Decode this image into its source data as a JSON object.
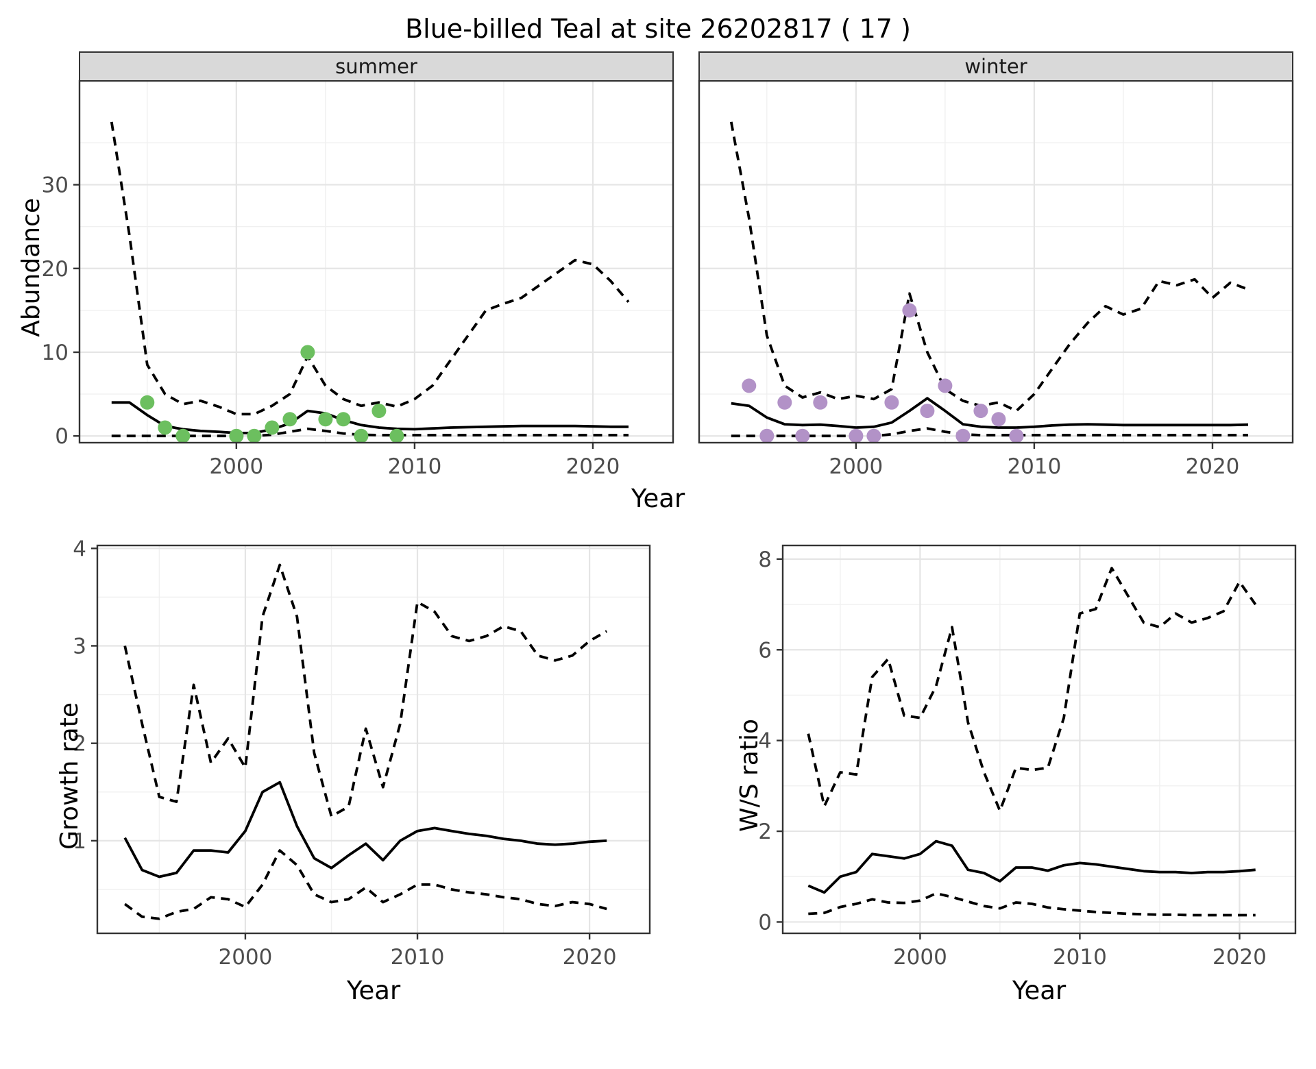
{
  "title": "Blue-billed Teal at site 26202817 ( 17 )",
  "colors": {
    "accent_summer": "#6cbf5f",
    "accent_winter": "#b292c7",
    "strip_bg": "#d9d9d9",
    "strip_text": "#1a1a1a",
    "grid_major": "#e5e5e5",
    "grid_minor": "#f0f0f0",
    "line": "#000000",
    "tick_label": "#4d4d4d",
    "border": "#333333"
  },
  "chart_data": [
    {
      "id": "abundance_summer",
      "type": "line",
      "facet": "summer",
      "ylabel": "Abundance",
      "xlabel": "Year",
      "xlim": [
        1991.2,
        2024.5
      ],
      "ylim": [
        -0.8,
        42.4
      ],
      "xticks": [
        2000,
        2010,
        2020
      ],
      "yticks": [
        0,
        10,
        20,
        30
      ],
      "xminor": [
        1995,
        2005,
        2015
      ],
      "yminor": [
        5,
        15,
        25,
        35
      ],
      "x": [
        1993,
        1994,
        1995,
        1996,
        1997,
        1998,
        1999,
        2000,
        2001,
        2002,
        2003,
        2004,
        2005,
        2006,
        2007,
        2008,
        2009,
        2010,
        2011,
        2012,
        2013,
        2014,
        2015,
        2016,
        2017,
        2018,
        2019,
        2020,
        2021,
        2022
      ],
      "series": [
        {
          "name": "median",
          "style": "solid",
          "values": [
            4.0,
            4.0,
            2.5,
            1.2,
            0.8,
            0.6,
            0.5,
            0.35,
            0.35,
            0.8,
            1.5,
            3.0,
            2.7,
            1.9,
            1.3,
            1.0,
            0.85,
            0.8,
            0.9,
            1.0,
            1.05,
            1.1,
            1.15,
            1.2,
            1.2,
            1.2,
            1.2,
            1.15,
            1.1,
            1.1
          ]
        },
        {
          "name": "lower_ci",
          "style": "dashed",
          "values": [
            0,
            0,
            0,
            0,
            0,
            0,
            0,
            0,
            0,
            0.15,
            0.5,
            0.85,
            0.6,
            0.3,
            0.15,
            0.1,
            0.1,
            0.1,
            0.1,
            0.1,
            0.1,
            0.1,
            0.1,
            0.1,
            0.1,
            0.1,
            0.1,
            0.1,
            0.1,
            0.1
          ]
        },
        {
          "name": "upper_ci",
          "style": "dashed",
          "values": [
            37.5,
            24,
            8.5,
            5,
            3.8,
            4.2,
            3.5,
            2.6,
            2.6,
            3.6,
            5,
            9.5,
            6,
            4.4,
            3.6,
            4,
            3.5,
            4.4,
            6,
            9,
            12,
            15,
            15.8,
            16.5,
            18,
            19.5,
            21,
            20.5,
            18.5,
            16
          ]
        }
      ],
      "points": {
        "name": "summer-observations",
        "color": "#6cbf5f",
        "x": [
          1995,
          1996,
          1997,
          2000,
          2001,
          2002,
          2003,
          2004,
          2005,
          2006,
          2007,
          2008,
          2009
        ],
        "y": [
          4,
          1,
          0,
          0,
          0,
          1,
          2,
          10,
          2,
          2,
          0,
          3,
          0
        ]
      }
    },
    {
      "id": "abundance_winter",
      "type": "line",
      "facet": "winter",
      "ylabel": "Abundance",
      "xlabel": "Year",
      "xlim": [
        1991.2,
        2024.5
      ],
      "ylim": [
        -0.8,
        42.4
      ],
      "xticks": [
        2000,
        2010,
        2020
      ],
      "yticks": [
        0,
        10,
        20,
        30
      ],
      "xminor": [
        1995,
        2005,
        2015
      ],
      "yminor": [
        5,
        15,
        25,
        35
      ],
      "x": [
        1993,
        1994,
        1995,
        1996,
        1997,
        1998,
        1999,
        2000,
        2001,
        2002,
        2003,
        2004,
        2005,
        2006,
        2007,
        2008,
        2009,
        2010,
        2011,
        2012,
        2013,
        2014,
        2015,
        2016,
        2017,
        2018,
        2019,
        2020,
        2021,
        2022
      ],
      "series": [
        {
          "name": "median",
          "style": "solid",
          "values": [
            3.9,
            3.6,
            2.2,
            1.4,
            1.3,
            1.35,
            1.2,
            1.0,
            1.1,
            1.6,
            3.0,
            4.5,
            3.0,
            1.4,
            1.1,
            1.0,
            1.0,
            1.1,
            1.25,
            1.35,
            1.4,
            1.35,
            1.3,
            1.3,
            1.3,
            1.3,
            1.3,
            1.3,
            1.3,
            1.35
          ]
        },
        {
          "name": "lower_ci",
          "style": "dashed",
          "values": [
            0,
            0,
            0,
            0,
            0,
            0,
            0,
            0,
            0,
            0.2,
            0.6,
            0.9,
            0.5,
            0.2,
            0.1,
            0.1,
            0.1,
            0.1,
            0.1,
            0.1,
            0.1,
            0.1,
            0.1,
            0.1,
            0.1,
            0.1,
            0.1,
            0.1,
            0.1,
            0.1
          ]
        },
        {
          "name": "upper_ci",
          "style": "dashed",
          "values": [
            37.5,
            26,
            12,
            6,
            4.6,
            5.2,
            4.4,
            4.8,
            4.4,
            5.6,
            17,
            10,
            5.6,
            4.2,
            3.6,
            4.0,
            3.0,
            5,
            8,
            11,
            13.5,
            15.5,
            14.5,
            15.2,
            18.5,
            18.0,
            18.7,
            16.5,
            18.3,
            17.5
          ]
        }
      ],
      "points": {
        "name": "winter-observations",
        "color": "#b292c7",
        "x": [
          1994,
          1995,
          1996,
          1997,
          1998,
          2000,
          2001,
          2002,
          2003,
          2004,
          2005,
          2006,
          2007,
          2008,
          2009
        ],
        "y": [
          6,
          0,
          4,
          0,
          4,
          0,
          0,
          4,
          15,
          3,
          6,
          0,
          3,
          2,
          0
        ]
      }
    },
    {
      "id": "growth_rate",
      "type": "line",
      "title": "",
      "ylabel": "Growth rate",
      "xlabel": "Year",
      "xlim": [
        1991.4,
        2023.5
      ],
      "ylim": [
        0.05,
        4.03
      ],
      "xticks": [
        2000,
        2010,
        2020
      ],
      "yticks": [
        1,
        2,
        3,
        4
      ],
      "xminor": [
        1995,
        2005,
        2015
      ],
      "yminor": [
        0.5,
        1.5,
        2.5,
        3.5
      ],
      "x": [
        1993,
        1994,
        1995,
        1996,
        1997,
        1998,
        1999,
        2000,
        2001,
        2002,
        2003,
        2004,
        2005,
        2006,
        2007,
        2008,
        2009,
        2010,
        2011,
        2012,
        2013,
        2014,
        2015,
        2016,
        2017,
        2018,
        2019,
        2020,
        2021
      ],
      "series": [
        {
          "name": "median",
          "style": "solid",
          "values": [
            1.03,
            0.7,
            0.63,
            0.67,
            0.9,
            0.9,
            0.88,
            1.1,
            1.5,
            1.6,
            1.15,
            0.82,
            0.72,
            0.85,
            0.97,
            0.8,
            1.0,
            1.1,
            1.13,
            1.1,
            1.07,
            1.05,
            1.02,
            1.0,
            0.97,
            0.96,
            0.97,
            0.99,
            1.0
          ]
        },
        {
          "name": "lower_ci",
          "style": "dashed",
          "values": [
            0.35,
            0.22,
            0.2,
            0.27,
            0.3,
            0.42,
            0.4,
            0.32,
            0.55,
            0.9,
            0.75,
            0.45,
            0.37,
            0.4,
            0.52,
            0.37,
            0.45,
            0.55,
            0.55,
            0.5,
            0.47,
            0.45,
            0.42,
            0.4,
            0.35,
            0.33,
            0.37,
            0.35,
            0.3
          ]
        },
        {
          "name": "upper_ci",
          "style": "dashed",
          "values": [
            3.0,
            2.2,
            1.45,
            1.4,
            2.6,
            1.8,
            2.05,
            1.75,
            3.3,
            3.83,
            3.3,
            1.9,
            1.25,
            1.35,
            2.15,
            1.55,
            2.2,
            3.45,
            3.35,
            3.1,
            3.05,
            3.1,
            3.2,
            3.15,
            2.9,
            2.85,
            2.9,
            3.05,
            3.15
          ]
        }
      ]
    },
    {
      "id": "ws_ratio",
      "type": "line",
      "title": "",
      "ylabel": "W/S ratio",
      "xlabel": "Year",
      "xlim": [
        1991.4,
        2023.5
      ],
      "ylim": [
        -0.25,
        8.3
      ],
      "xticks": [
        2000,
        2010,
        2020
      ],
      "yticks": [
        0,
        2,
        4,
        6,
        8
      ],
      "xminor": [
        1995,
        2005,
        2015
      ],
      "yminor": [
        1,
        3,
        5,
        7
      ],
      "x": [
        1993,
        1994,
        1995,
        1996,
        1997,
        1998,
        1999,
        2000,
        2001,
        2002,
        2003,
        2004,
        2005,
        2006,
        2007,
        2008,
        2009,
        2010,
        2011,
        2012,
        2013,
        2014,
        2015,
        2016,
        2017,
        2018,
        2019,
        2020,
        2021
      ],
      "series": [
        {
          "name": "median",
          "style": "solid",
          "values": [
            0.8,
            0.65,
            1.0,
            1.1,
            1.5,
            1.45,
            1.4,
            1.5,
            1.78,
            1.68,
            1.15,
            1.08,
            0.9,
            1.2,
            1.2,
            1.13,
            1.25,
            1.3,
            1.27,
            1.22,
            1.17,
            1.12,
            1.1,
            1.1,
            1.08,
            1.1,
            1.1,
            1.12,
            1.15
          ]
        },
        {
          "name": "lower_ci",
          "style": "dashed",
          "values": [
            0.18,
            0.2,
            0.33,
            0.4,
            0.5,
            0.43,
            0.42,
            0.47,
            0.63,
            0.55,
            0.45,
            0.35,
            0.3,
            0.43,
            0.4,
            0.32,
            0.28,
            0.25,
            0.22,
            0.2,
            0.18,
            0.17,
            0.16,
            0.16,
            0.15,
            0.15,
            0.15,
            0.15,
            0.15
          ]
        },
        {
          "name": "upper_ci",
          "style": "dashed",
          "values": [
            4.15,
            2.55,
            3.3,
            3.25,
            5.4,
            5.8,
            4.55,
            4.5,
            5.2,
            6.5,
            4.4,
            3.3,
            2.45,
            3.4,
            3.35,
            3.4,
            4.5,
            6.8,
            6.9,
            7.8,
            7.2,
            6.6,
            6.5,
            6.8,
            6.6,
            6.7,
            6.85,
            7.5,
            7.0
          ]
        }
      ]
    }
  ]
}
